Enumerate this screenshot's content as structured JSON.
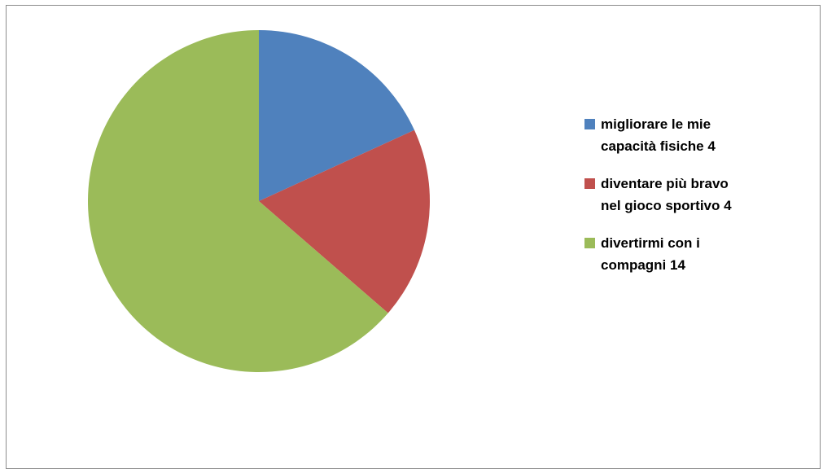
{
  "chart_data": {
    "type": "pie",
    "title": "",
    "categories": [
      "migliorare le mie capacità fisiche 4",
      " diventare più bravo nel gioco sportivo 4",
      " divertirmi con i compagni 14"
    ],
    "values": [
      4,
      4,
      14
    ],
    "colors": [
      "#4f81bd",
      "#c0504d",
      "#9bbb59"
    ],
    "legend_position": "right",
    "legend_lines": [
      "migliorare le mie\ncapacità fisiche 4",
      " diventare più bravo\nnel gioco sportivo 4",
      " divertirmi con i\ncompagni 14"
    ]
  }
}
